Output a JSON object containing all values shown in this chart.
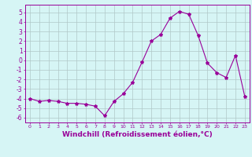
{
  "x": [
    0,
    1,
    2,
    3,
    4,
    5,
    6,
    7,
    8,
    9,
    10,
    11,
    12,
    13,
    14,
    15,
    16,
    17,
    18,
    19,
    20,
    21,
    22,
    23
  ],
  "y": [
    -4.0,
    -4.3,
    -4.2,
    -4.3,
    -4.5,
    -4.5,
    -4.6,
    -4.8,
    -5.8,
    -4.3,
    -3.5,
    -2.3,
    -0.2,
    2.0,
    2.7,
    4.4,
    5.1,
    4.8,
    2.6,
    -0.3,
    -1.3,
    -1.8,
    0.5,
    -3.8
  ],
  "line_color": "#990099",
  "marker": "*",
  "marker_size": 3,
  "bg_color": "#d6f5f5",
  "grid_color": "#b0c8c8",
  "xlabel": "Windchill (Refroidissement éolien,°C)",
  "ylim": [
    -6.5,
    5.8
  ],
  "xlim": [
    -0.5,
    23.5
  ],
  "yticks": [
    -6,
    -5,
    -4,
    -3,
    -2,
    -1,
    0,
    1,
    2,
    3,
    4,
    5
  ],
  "xticks": [
    0,
    1,
    2,
    3,
    4,
    5,
    6,
    7,
    8,
    9,
    10,
    11,
    12,
    13,
    14,
    15,
    16,
    17,
    18,
    19,
    20,
    21,
    22,
    23
  ],
  "tick_color": "#990099",
  "label_color": "#990099",
  "spine_color": "#990099",
  "xlabel_fontsize": 6.5,
  "xlabel_fontweight": "bold",
  "xtick_fontsize": 4.5,
  "ytick_fontsize": 5.5,
  "linewidth": 0.8
}
